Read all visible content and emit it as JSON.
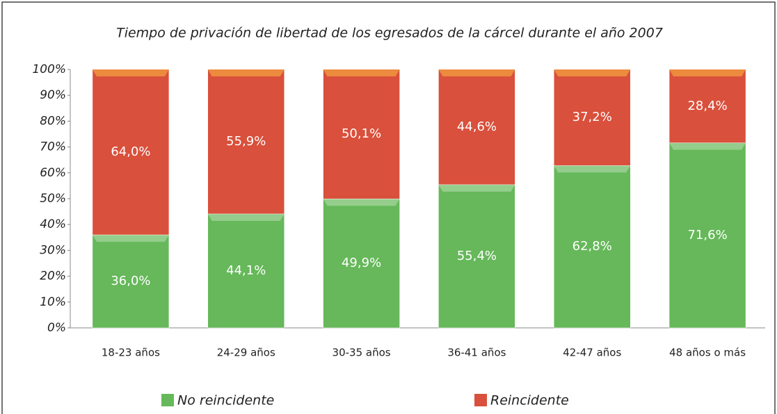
{
  "chart_data": {
    "type": "stacked_bar",
    "title": "Tiempo de privación de libertad de los egresados de la cárcel durante el año 2007",
    "categories": [
      "18-23 años",
      "24-29 años",
      "30-35 años",
      "36-41 años",
      "42-47 años",
      "48 años o más"
    ],
    "series": [
      {
        "name": "No reincidente",
        "color": "#66b85a",
        "values": [
          36.0,
          44.1,
          49.9,
          55.4,
          62.8,
          71.6
        ],
        "value_labels": [
          "36,0%",
          "44,1%",
          "49,9%",
          "55,4%",
          "62,8%",
          "71,6%"
        ]
      },
      {
        "name": "Reincidente",
        "color": "#d9503c",
        "values": [
          64.0,
          55.9,
          50.1,
          44.6,
          37.2,
          28.4
        ],
        "value_labels": [
          "64,0%",
          "55,9%",
          "50,1%",
          "44,6%",
          "37,2%",
          "28,4%"
        ]
      }
    ],
    "ylim": [
      0,
      100
    ],
    "yticks": [
      {
        "value": 0,
        "label": "0%"
      },
      {
        "value": 10,
        "label": "10%"
      },
      {
        "value": 20,
        "label": "20%"
      },
      {
        "value": 30,
        "label": "30%"
      },
      {
        "value": 40,
        "label": "40%"
      },
      {
        "value": 50,
        "label": "50%"
      },
      {
        "value": 60,
        "label": "60%"
      },
      {
        "value": 70,
        "label": "70%"
      },
      {
        "value": 80,
        "label": "80%"
      },
      {
        "value": 90,
        "label": "90%"
      },
      {
        "value": 100,
        "label": "100%"
      }
    ],
    "legend": "bottom"
  }
}
